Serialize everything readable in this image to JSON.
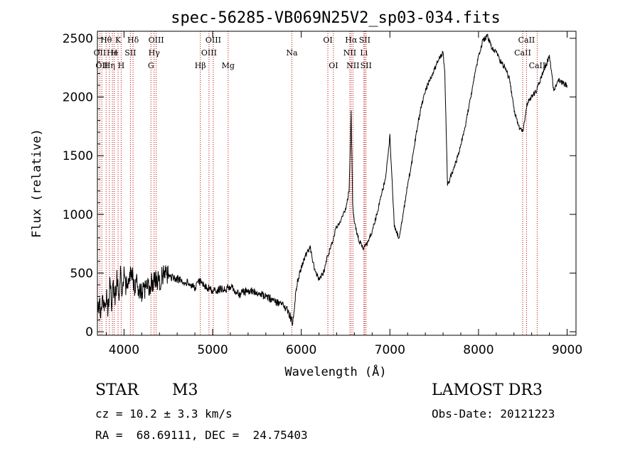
{
  "chart_data": {
    "type": "line",
    "title": "spec-56285-VB069N25V2_sp03-034.fits",
    "xlabel": "Wavelength (Å)",
    "ylabel": "Flux (relative)",
    "xlim": [
      3700,
      9100
    ],
    "ylim": [
      -30,
      2560
    ],
    "xticks": [
      4000,
      5000,
      6000,
      7000,
      8000,
      9000
    ],
    "yticks": [
      0,
      500,
      1000,
      1500,
      2000,
      2500
    ],
    "line_color": "#000000",
    "marker_color": "#c00000",
    "series": [
      {
        "x": [
          3700,
          3720,
          3740,
          3760,
          3780,
          3800,
          3820,
          3840,
          3860,
          3880,
          3900,
          3920,
          3940,
          3960,
          3980,
          4000,
          4020,
          4040,
          4060,
          4080,
          4100,
          4120,
          4140,
          4160,
          4180,
          4200,
          4250,
          4300,
          4350,
          4400,
          4450,
          4500,
          4600,
          4700,
          4800,
          4870,
          4900,
          5000,
          5100,
          5200,
          5300,
          5400,
          5500,
          5600,
          5700,
          5800,
          5850,
          5880,
          5900,
          5920,
          5950,
          6000,
          6050,
          6100,
          6150,
          6200,
          6250,
          6300,
          6350,
          6400,
          6450,
          6500,
          6540,
          6563,
          6580,
          6600,
          6650,
          6700,
          6750,
          6800,
          6850,
          6900,
          6950,
          7000,
          7050,
          7100,
          7150,
          7200,
          7250,
          7300,
          7350,
          7400,
          7450,
          7500,
          7550,
          7600,
          7620,
          7650,
          7700,
          7750,
          7800,
          7850,
          7900,
          7950,
          8000,
          8050,
          8100,
          8150,
          8200,
          8250,
          8300,
          8350,
          8400,
          8450,
          8500,
          8550,
          8600,
          8650,
          8700,
          8750,
          8800,
          8850,
          8900,
          8950,
          9000
        ],
        "y": [
          150,
          250,
          120,
          300,
          200,
          350,
          180,
          420,
          250,
          380,
          300,
          450,
          320,
          480,
          350,
          500,
          380,
          470,
          400,
          520,
          450,
          380,
          420,
          350,
          320,
          330,
          360,
          400,
          460,
          430,
          490,
          470,
          450,
          420,
          380,
          440,
          400,
          350,
          360,
          380,
          320,
          350,
          330,
          300,
          260,
          220,
          180,
          120,
          80,
          200,
          400,
          550,
          650,
          720,
          530,
          450,
          500,
          650,
          760,
          900,
          950,
          1050,
          1200,
          1880,
          1100,
          920,
          780,
          720,
          750,
          860,
          990,
          1150,
          1300,
          1670,
          900,
          800,
          1000,
          1250,
          1450,
          1700,
          1900,
          2050,
          2150,
          2230,
          2320,
          2380,
          2200,
          1250,
          1350,
          1450,
          1600,
          1750,
          1950,
          2150,
          2350,
          2480,
          2520,
          2420,
          2380,
          2300,
          2250,
          2150,
          1900,
          1750,
          1700,
          1950,
          2000,
          2050,
          2150,
          2250,
          2350,
          2050,
          2150,
          2120,
          2100
        ]
      }
    ],
    "lines": [
      {
        "wave": 3727,
        "label": "OII",
        "row": 1
      },
      {
        "wave": 3750,
        "label": "OII",
        "row": 2
      },
      {
        "wave": 3798,
        "label": "Hθ",
        "row": 0
      },
      {
        "wave": 3835,
        "label": "Hη",
        "row": 2
      },
      {
        "wave": 3869,
        "label": "He",
        "row": 1
      },
      {
        "wave": 3889,
        "label": "H",
        "row": 1
      },
      {
        "wave": 3933,
        "label": "K",
        "row": 0
      },
      {
        "wave": 3968,
        "label": "H",
        "row": 2
      },
      {
        "wave": 4072,
        "label": "SII",
        "row": 1
      },
      {
        "wave": 4102,
        "label": "Hδ",
        "row": 0
      },
      {
        "wave": 4304,
        "label": "G",
        "row": 2
      },
      {
        "wave": 4340,
        "label": "Hγ",
        "row": 1
      },
      {
        "wave": 4363,
        "label": "OIII",
        "row": 0
      },
      {
        "wave": 4861,
        "label": "Hβ",
        "row": 2
      },
      {
        "wave": 4959,
        "label": "OIII",
        "row": 1
      },
      {
        "wave": 5007,
        "label": "OIII",
        "row": 0
      },
      {
        "wave": 5175,
        "label": "Mg",
        "row": 2
      },
      {
        "wave": 5894,
        "label": "Na",
        "row": 1
      },
      {
        "wave": 6300,
        "label": "OI",
        "row": 0
      },
      {
        "wave": 6363,
        "label": "OI",
        "row": 2
      },
      {
        "wave": 6548,
        "label": "NII",
        "row": 1
      },
      {
        "wave": 6563,
        "label": "Hα",
        "row": 0
      },
      {
        "wave": 6583,
        "label": "NII",
        "row": 2
      },
      {
        "wave": 6707,
        "label": "Li",
        "row": 1
      },
      {
        "wave": 6716,
        "label": "SII",
        "row": 0
      },
      {
        "wave": 6731,
        "label": "SII",
        "row": 2
      },
      {
        "wave": 8498,
        "label": "CaII",
        "row": 1
      },
      {
        "wave": 8542,
        "label": "CaII",
        "row": 0
      },
      {
        "wave": 8662,
        "label": "CaII",
        "row": 2
      }
    ]
  },
  "footer": {
    "class_label": "STAR",
    "subclass": "M3",
    "survey": "LAMOST DR3",
    "redshift": "cz = 10.2 ± 3.3 km/s",
    "obs_date": "Obs-Date: 20121223",
    "coords": "RA =  68.69111, DEC =  24.75403"
  }
}
